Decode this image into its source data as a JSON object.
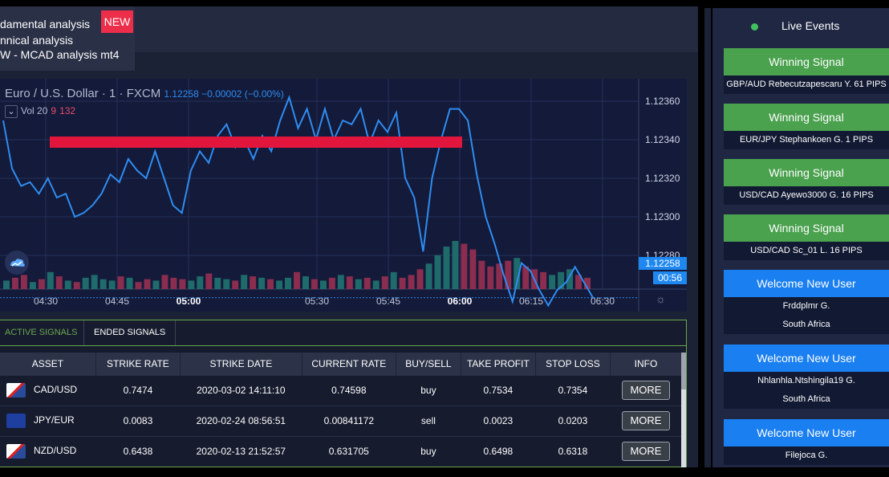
{
  "menu": {
    "items": [
      "damental analysis",
      "nnical analysis",
      "W - MCAD analysis mt4"
    ],
    "badge": "NEW"
  },
  "chart_header": {
    "symbol": "Euro / U.S. Dollar · 1 · FXCM",
    "price_info": "1.12258  −0.00002 (−0.00%)",
    "vol_label": "Vol 20",
    "vol_a": "9",
    "vol_b": "132",
    "price_tag": "1.12258",
    "time_tag": "00:56"
  },
  "chart_data": {
    "type": "line",
    "title": "Euro / U.S. Dollar · 1 · FXCM",
    "y_ticks": [
      "1.12360",
      "1.12340",
      "1.12320",
      "1.12300",
      "1.12280"
    ],
    "ylim": [
      1.12265,
      1.1237
    ],
    "x_ticks": [
      "04:30",
      "04:45",
      "05:00",
      "05:30",
      "05:45",
      "06:00",
      "06:15",
      "06:30"
    ],
    "series": [
      {
        "values": [
          1.1235,
          1.12325,
          1.12316,
          1.12318,
          1.12312,
          1.1232,
          1.1231,
          1.12312,
          1.123,
          1.12302,
          1.12306,
          1.12312,
          1.12322,
          1.12318,
          1.1233,
          1.12324,
          1.1232,
          1.12334,
          1.1232,
          1.12306,
          1.12302,
          1.12324,
          1.12334,
          1.12328,
          1.12342,
          1.12348,
          1.12336,
          1.1234,
          1.1233,
          1.12342,
          1.12334,
          1.1235,
          1.12362,
          1.12346,
          1.12356,
          1.1234,
          1.12356,
          1.1234,
          1.1235,
          1.12348,
          1.12356,
          1.12338,
          1.1235,
          1.12344,
          1.12354,
          1.1232,
          1.1231,
          1.12282,
          1.1232,
          1.1234,
          1.12356,
          1.12356,
          1.1235,
          1.12322,
          1.123,
          1.12286,
          1.1227,
          1.12256,
          1.12276,
          1.12272,
          1.12262,
          1.12254,
          1.12262,
          1.12266,
          1.12274,
          1.12266,
          1.12258
        ]
      }
    ],
    "volume": [
      6,
      8,
      10,
      5,
      7,
      12,
      9,
      6,
      5,
      8,
      10,
      7,
      6,
      9,
      8,
      5,
      7,
      6,
      10,
      8,
      7,
      6,
      9,
      11,
      8,
      7,
      6,
      10,
      9,
      8,
      7,
      6,
      8,
      12,
      9,
      7,
      6,
      8,
      10,
      9,
      7,
      8,
      6,
      9,
      12,
      8,
      10,
      14,
      18,
      24,
      30,
      34,
      32,
      28,
      20,
      16,
      18,
      20,
      22,
      16,
      14,
      12,
      10,
      12,
      14,
      10,
      8
    ],
    "annotation": "horizontal line"
  },
  "tabs": {
    "active": "ACTIVE SIGNALS",
    "ended": "ENDED SIGNALS"
  },
  "table": {
    "headers": [
      "ASSET",
      "STRIKE RATE",
      "STRIKE DATE",
      "CURRENT RATE",
      "BUY/SELL",
      "TAKE PROFIT",
      "STOP LOSS",
      "INFO"
    ],
    "rows": [
      [
        "CAD/USD",
        "0.7474",
        "2020-03-02 14:11:10",
        "0.74598",
        "buy",
        "0.7534",
        "0.7354",
        "MORE"
      ],
      [
        "JPY/EUR",
        "0.0083",
        "2020-02-24 08:56:51",
        "0.00841172",
        "sell",
        "0.0023",
        "0.0203",
        "MORE"
      ],
      [
        "NZD/USD",
        "0.6438",
        "2020-02-13 21:52:57",
        "0.631705",
        "buy",
        "0.6498",
        "0.6318",
        "MORE"
      ]
    ]
  },
  "live": {
    "title": "Live Events",
    "events": [
      {
        "type": "win",
        "head": "Winning Signal",
        "lines": [
          "GBP/AUD Rebecutzapescaru Y. 61 PIPS"
        ]
      },
      {
        "type": "win",
        "head": "Winning Signal",
        "lines": [
          "EUR/JPY Stephankoen G. 1 PIPS"
        ]
      },
      {
        "type": "win",
        "head": "Winning Signal",
        "lines": [
          "USD/CAD Ayewo3000 G. 16 PIPS"
        ]
      },
      {
        "type": "win",
        "head": "Winning Signal",
        "lines": [
          "USD/CAD Sc_01 L. 16 PIPS"
        ]
      },
      {
        "type": "user",
        "head": "Welcome New User",
        "lines": [
          "Frddplmr G.",
          "South Africa"
        ]
      },
      {
        "type": "user",
        "head": "Welcome New User",
        "lines": [
          "Nhlanhla.Ntshingila19 G.",
          "South Africa"
        ]
      },
      {
        "type": "user",
        "head": "Welcome New User",
        "lines": [
          "Filejoca G."
        ]
      }
    ]
  }
}
